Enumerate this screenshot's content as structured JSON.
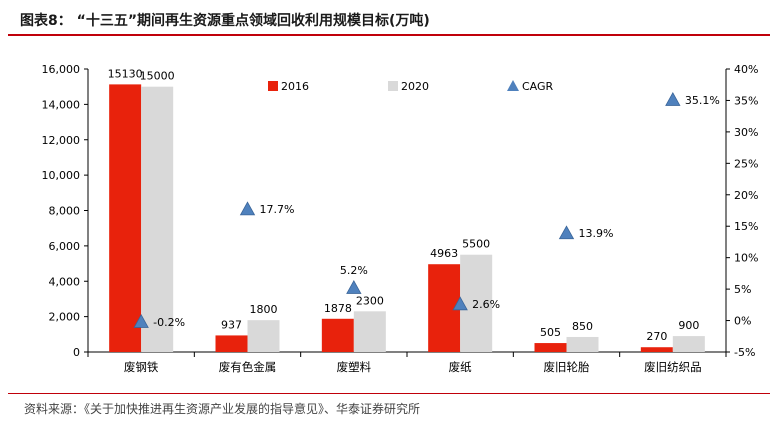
{
  "header": {
    "title": "图表8：  “十三五”期间再生资源重点领域回收利用规模目标(万吨)"
  },
  "footer": {
    "source": "资料来源：《关于加快推进再生资源产业发展的指导意见》、华泰证券研究所"
  },
  "colors": {
    "series_2016": "#e8220c",
    "series_2020": "#d9d9d9",
    "cagr_marker": "#4f81bd",
    "accent_rule": "#c0000a"
  },
  "chart_data": {
    "type": "bar",
    "categories": [
      "废钢铁",
      "废有色金属",
      "废塑料",
      "废纸",
      "废旧轮胎",
      "废旧纺织品"
    ],
    "series": [
      {
        "name": "2016",
        "values": [
          15130,
          937,
          1878,
          4963,
          505,
          270
        ],
        "labels": [
          "15130",
          "937",
          "1878",
          "4963",
          "505",
          "270"
        ]
      },
      {
        "name": "2020",
        "values": [
          15000,
          1800,
          2300,
          5500,
          850,
          900
        ],
        "labels": [
          "15000",
          "1800",
          "2300",
          "5500",
          "850",
          "900"
        ]
      }
    ],
    "cagr": {
      "name": "CAGR",
      "values": [
        -0.2,
        17.7,
        5.2,
        2.6,
        13.9,
        35.1
      ],
      "labels": [
        "-0.2%",
        "17.7%",
        "5.2%",
        "2.6%",
        "13.9%",
        "35.1%"
      ]
    },
    "y_left": {
      "min": 0,
      "max": 16000,
      "ticks": [
        0,
        2000,
        4000,
        6000,
        8000,
        10000,
        12000,
        14000,
        16000
      ],
      "tick_labels": [
        "0",
        "2,000",
        "4,000",
        "6,000",
        "8,000",
        "10,000",
        "12,000",
        "14,000",
        "16,000"
      ]
    },
    "y_right": {
      "min": -5,
      "max": 40,
      "ticks": [
        -5,
        0,
        5,
        10,
        15,
        20,
        25,
        30,
        35,
        40
      ],
      "tick_labels": [
        "-5%",
        "0%",
        "5%",
        "10%",
        "15%",
        "20%",
        "25%",
        "30%",
        "35%",
        "40%"
      ]
    },
    "legend_position": "top",
    "grid": false
  }
}
